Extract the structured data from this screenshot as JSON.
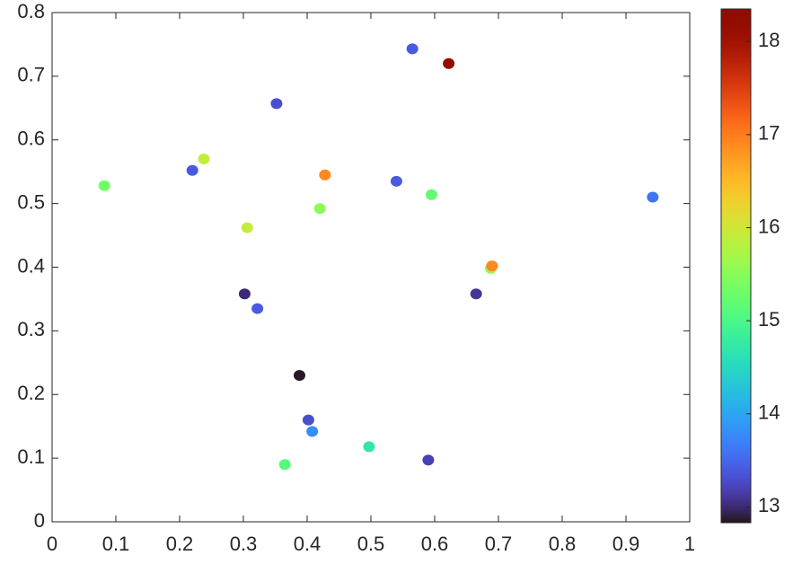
{
  "chart_data": {
    "type": "scatter",
    "x": [
      0.565,
      0.622,
      0.622,
      0.352,
      0.238,
      0.22,
      0.082,
      0.428,
      0.428,
      0.54,
      0.595,
      0.942,
      0.42,
      0.306,
      0.688,
      0.69,
      0.302,
      0.665,
      0.322,
      0.388,
      0.402,
      0.408,
      0.497,
      0.365,
      0.59
    ],
    "y": [
      0.743,
      0.72,
      0.72,
      0.657,
      0.57,
      0.552,
      0.528,
      0.545,
      0.545,
      0.535,
      0.514,
      0.51,
      0.492,
      0.462,
      0.398,
      0.402,
      0.358,
      0.358,
      0.335,
      0.23,
      0.16,
      0.142,
      0.118,
      0.09,
      0.097
    ],
    "c": [
      13.4,
      15.6,
      18.2,
      13.3,
      15.9,
      13.4,
      15.3,
      15.6,
      16.9,
      13.4,
      15.2,
      13.6,
      15.5,
      15.9,
      15.6,
      16.9,
      13.0,
      13.1,
      13.4,
      12.85,
      13.3,
      13.8,
      14.7,
      15.1,
      13.2
    ],
    "colormap": "turbo",
    "xlim": [
      0,
      1
    ],
    "xticks": [
      0,
      0.1,
      0.2,
      0.3,
      0.4,
      0.5,
      0.6,
      0.7,
      0.8,
      0.9,
      1
    ],
    "ylim": [
      0,
      0.8
    ],
    "yticks": [
      0,
      0.1,
      0.2,
      0.3,
      0.4,
      0.5,
      0.6,
      0.7,
      0.8
    ],
    "clim": [
      12.83,
      18.35
    ],
    "cticks": [
      13,
      14,
      15,
      16,
      17,
      18
    ],
    "grid": false
  }
}
